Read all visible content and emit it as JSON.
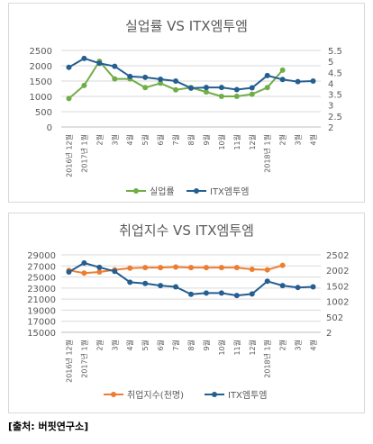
{
  "colors": {
    "green": "#70ad47",
    "blue": "#255e91",
    "orange": "#ed7d31",
    "grid": "#d9d9d9",
    "axis": "#595959"
  },
  "categories": [
    "2016년 12월",
    "2017년 1월",
    "2월",
    "3월",
    "4월",
    "5월",
    "6월",
    "7월",
    "8월",
    "9월",
    "10월",
    "11월",
    "12월",
    "2018년 1월",
    "2월",
    "3월",
    "4월"
  ],
  "chart_data": [
    {
      "type": "line",
      "title": "실업률 VS ITX엠투엠",
      "categories": [
        "2016년 12월",
        "2017년 1월",
        "2월",
        "3월",
        "4월",
        "5월",
        "6월",
        "7월",
        "8월",
        "9월",
        "10월",
        "11월",
        "12월",
        "2018년 1월",
        "2월",
        "3월",
        "4월"
      ],
      "y_left": {
        "ticks": [
          "2500",
          "2000",
          "1500",
          "1000",
          "500",
          "0"
        ],
        "range": [
          0,
          2500
        ]
      },
      "y_right": {
        "ticks": [
          "5.5",
          "5",
          "4.5",
          "4",
          "3.5",
          "3",
          "2.5",
          "2"
        ],
        "range": [
          2,
          5.5
        ]
      },
      "series": [
        {
          "name": "실업률",
          "axis": "right",
          "color": "#70ad47",
          "values": [
            3.3,
            3.9,
            5.0,
            4.2,
            4.2,
            3.8,
            4.0,
            3.7,
            3.8,
            3.6,
            3.4,
            3.4,
            3.5,
            3.8,
            4.6,
            null,
            null
          ]
        },
        {
          "name": "ITX엠투엠",
          "axis": "left",
          "color": "#255e91",
          "values": [
            1950,
            2240,
            2080,
            1980,
            1650,
            1620,
            1560,
            1500,
            1270,
            1290,
            1290,
            1220,
            1280,
            1680,
            1550,
            1480,
            1500
          ]
        }
      ],
      "legend": "bottom"
    },
    {
      "type": "line",
      "title": "취업지수 VS ITX엠투엠",
      "categories": [
        "2016년 12월",
        "2017년 1월",
        "2월",
        "3월",
        "4월",
        "5월",
        "6월",
        "7월",
        "8월",
        "9월",
        "10월",
        "11월",
        "12월",
        "2018년 1월",
        "2월",
        "3월",
        "4월"
      ],
      "y_left": {
        "ticks": [
          "29000",
          "27000",
          "25000",
          "23000",
          "21000",
          "19000",
          "17000",
          "15000"
        ],
        "range": [
          15000,
          29000
        ]
      },
      "y_right": {
        "ticks": [
          "2502",
          "2002",
          "1502",
          "1002",
          "502",
          "2"
        ],
        "range": [
          2,
          2502
        ]
      },
      "series": [
        {
          "name": "취업지수(천명)",
          "axis": "left",
          "color": "#ed7d31",
          "values": [
            26200,
            25700,
            25900,
            26300,
            26600,
            26700,
            26700,
            26800,
            26700,
            26700,
            26700,
            26700,
            26400,
            26300,
            27100,
            null,
            null
          ]
        },
        {
          "name": "ITX엠투엠",
          "axis": "right",
          "color": "#255e91",
          "values": [
            1950,
            2240,
            2100,
            1970,
            1620,
            1580,
            1510,
            1470,
            1230,
            1270,
            1270,
            1190,
            1240,
            1650,
            1510,
            1450,
            1470
          ]
        }
      ],
      "legend": "bottom"
    }
  ],
  "source": "[출처: 버핏연구소]"
}
